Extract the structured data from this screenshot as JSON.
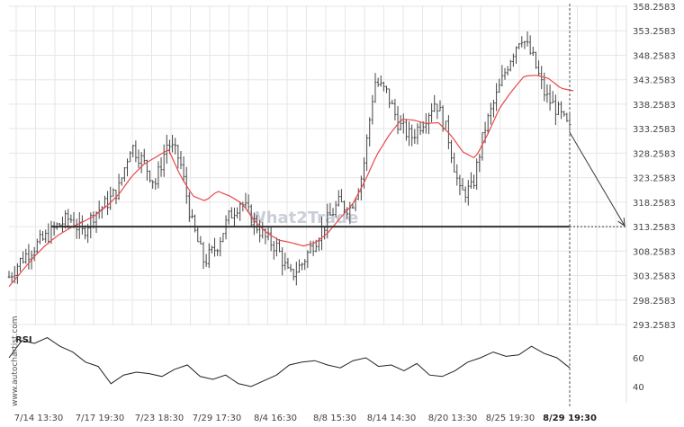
{
  "watermark": "What2Trade",
  "sidebar_text": "www.autochartist.com",
  "colors": {
    "candle": "#444444",
    "ma": "#e8484a",
    "level": "#333333",
    "grid": "#e6e6e6",
    "rsi_line": "#222222",
    "arrow": "#333333",
    "watermark": "#c9ced8"
  },
  "chart_data": [
    {
      "type": "candlestick",
      "title": "",
      "y_ticks": [
        "358.2583",
        "353.2583",
        "348.2583",
        "343.2583",
        "338.2583",
        "333.2583",
        "328.2583",
        "323.2583",
        "318.2583",
        "313.2583",
        "308.2583",
        "303.2583",
        "298.2583",
        "293.2583"
      ],
      "ylim": [
        290.0,
        359.0
      ],
      "x_ticks": [
        "7/14 13:30",
        "7/17 19:30",
        "7/23 18:30",
        "7/29 17:30",
        "8/4 16:30",
        "8/8 15:30",
        "8/14 14:30",
        "8/20 13:30",
        "8/25 19:30",
        "8/29 19:30"
      ],
      "x_ticks_bold": [
        false,
        false,
        false,
        false,
        false,
        false,
        false,
        false,
        false,
        true
      ],
      "close_series": [
        303.0,
        306.5,
        309.0,
        311.0,
        313.5,
        315.0,
        312.0,
        316.0,
        318.0,
        321.0,
        330.0,
        326.5,
        322.0,
        330.5,
        327.0,
        314.0,
        306.0,
        309.0,
        315.0,
        318.5,
        314.5,
        311.0,
        309.0,
        303.0,
        305.5,
        310.0,
        314.0,
        318.0,
        317.0,
        324.0,
        343.0,
        340.5,
        334.0,
        331.5,
        335.0,
        339.0,
        332.0,
        320.0,
        321.0,
        333.0,
        340.0,
        347.0,
        352.5,
        347.5,
        340.0,
        337.0,
        333.0
      ],
      "ma_series": [
        301.0,
        304.0,
        307.0,
        309.5,
        311.5,
        313.0,
        314.2,
        315.5,
        317.5,
        320.0,
        323.5,
        326.0,
        327.5,
        329.0,
        323.5,
        319.5,
        318.5,
        320.5,
        319.5,
        318.0,
        314.5,
        312.0,
        310.5,
        310.0,
        309.3,
        310.0,
        312.0,
        315.0,
        317.8,
        322.5,
        328.0,
        332.0,
        335.2,
        335.0,
        334.3,
        334.5,
        332.0,
        328.5,
        327.2,
        332.0,
        337.5,
        341.0,
        344.0,
        344.2,
        343.5,
        341.5,
        341.0
      ],
      "support_level": 313.2583,
      "projection_target": 313.2583,
      "indicator": {
        "name": "RSI",
        "y_ticks": [
          "60",
          "40"
        ],
        "ylim": [
          33,
          81
        ],
        "values": [
          60,
          72,
          70,
          74,
          68,
          64,
          57,
          54,
          42,
          48,
          50,
          49,
          47,
          52,
          55,
          47,
          45,
          48,
          42,
          40,
          44,
          48,
          55,
          57,
          58,
          55,
          53,
          58,
          60,
          54,
          55,
          51,
          56,
          48,
          47,
          51,
          57,
          60,
          64,
          61,
          62,
          68,
          63,
          60,
          53
        ]
      }
    }
  ]
}
